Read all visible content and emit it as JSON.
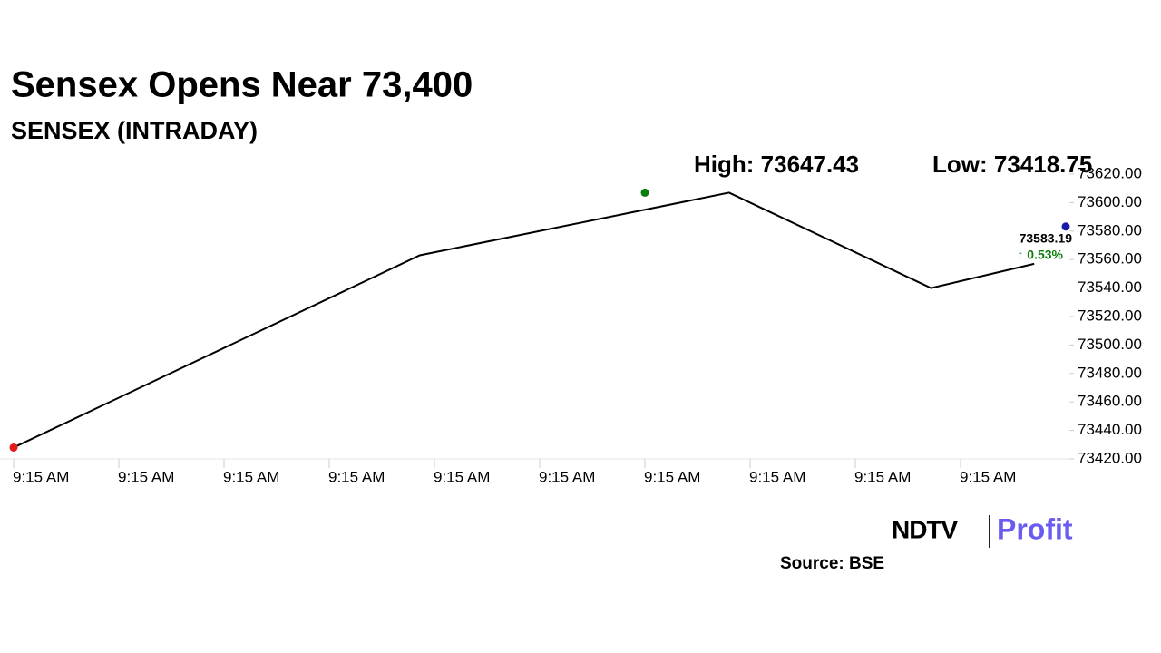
{
  "chart_data": {
    "type": "line",
    "title": "Sensex Opens Near 73,400",
    "subtitle": "SENSEX (INTRADAY)",
    "annotations": {
      "high": "High: 73647.43",
      "low": "Low: 73418.75",
      "change": "↑ 0.53%"
    },
    "x": [
      0,
      3.86,
      6.8,
      8.72,
      9.7
    ],
    "series": [
      {
        "name": "SENSEX",
        "color": "#000000",
        "values": [
          73428,
          73563,
          73607,
          73540,
          73557
        ]
      }
    ],
    "markers": [
      {
        "x": 0,
        "y": 73428,
        "color": "#e31b1b"
      },
      {
        "x": 6,
        "y": 73607,
        "color": "#0a7d0a"
      },
      {
        "x": 10,
        "y": 73583.19,
        "color": "#1a1aa8"
      }
    ],
    "xlim": [
      0,
      10
    ],
    "xticks": [
      {
        "value": 0,
        "label": "9:15 AM"
      },
      {
        "value": 1,
        "label": "9:15 AM"
      },
      {
        "value": 2,
        "label": "9:15 AM"
      },
      {
        "value": 3,
        "label": "9:15 AM"
      },
      {
        "value": 4,
        "label": "9:15 AM"
      },
      {
        "value": 5,
        "label": "9:15 AM"
      },
      {
        "value": 6,
        "label": "9:15 AM"
      },
      {
        "value": 7,
        "label": "9:15 AM"
      },
      {
        "value": 8,
        "label": "9:15 AM"
      },
      {
        "value": 9,
        "label": "9:15 AM"
      }
    ],
    "ylim": [
      73420,
      73620
    ],
    "yticks": [
      {
        "value": 73420,
        "label": "73420.00"
      },
      {
        "value": 73440,
        "label": "73440.00"
      },
      {
        "value": 73460,
        "label": "73460.00"
      },
      {
        "value": 73480,
        "label": "73480.00"
      },
      {
        "value": 73500,
        "label": "73500.00"
      },
      {
        "value": 73520,
        "label": "73520.00"
      },
      {
        "value": 73540,
        "label": "73540.00"
      },
      {
        "value": 73560,
        "label": "73560.00"
      },
      {
        "value": 73580,
        "label": "73580.00"
      },
      {
        "value": 73600,
        "label": "73600.00"
      },
      {
        "value": 73620,
        "label": "73620.00"
      }
    ],
    "grid": false,
    "logo": {
      "left": "NDTV",
      "right": "Profit"
    },
    "source": "Source: BSE"
  }
}
